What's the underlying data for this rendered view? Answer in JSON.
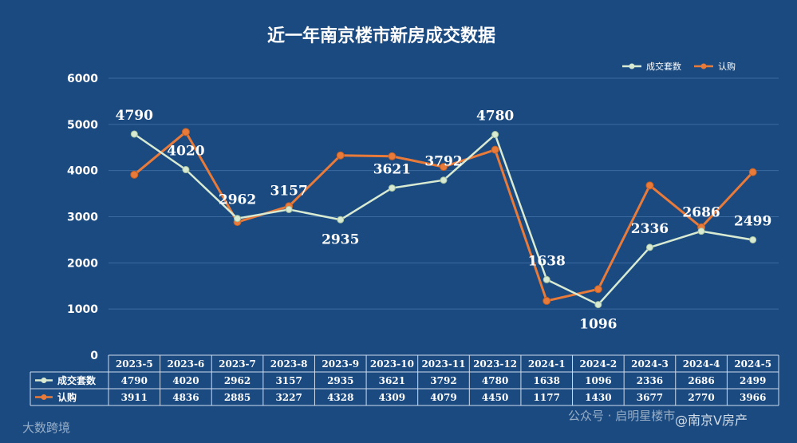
{
  "chart_data": {
    "type": "line",
    "title": "近一年南京楼市新房成交数据",
    "categories": [
      "2023-5",
      "2023-6",
      "2023-7",
      "2023-8",
      "2023-9",
      "2023-10",
      "2023-11",
      "2023-12",
      "2024-1",
      "2024-2",
      "2024-3",
      "2024-4",
      "2024-5"
    ],
    "series": [
      {
        "name": "成交套数",
        "values": [
          4790,
          4020,
          2962,
          3157,
          2935,
          3621,
          3792,
          4780,
          1638,
          1096,
          2336,
          2686,
          2499
        ],
        "color": "#d8ead2"
      },
      {
        "name": "认购",
        "values": [
          3911,
          4836,
          2885,
          3227,
          4328,
          4309,
          4079,
          4450,
          1177,
          1430,
          3677,
          2770,
          3966
        ],
        "color": "#e87a3a"
      }
    ],
    "ylim": [
      0,
      6000
    ],
    "yticks": [
      "0",
      "1000",
      "2000",
      "3000",
      "4000",
      "5000",
      "6000"
    ],
    "grid": true,
    "legend": "top-right",
    "data_table": true
  },
  "colors": {
    "background": "#1a4a80",
    "gridline": "#3b6aa0",
    "text": "#ffffff"
  },
  "watermarks": {
    "bottom_left": "大数跨境",
    "bottom_middle": "公众号 · 启明星楼市",
    "bottom_right": "@南京V房产"
  }
}
